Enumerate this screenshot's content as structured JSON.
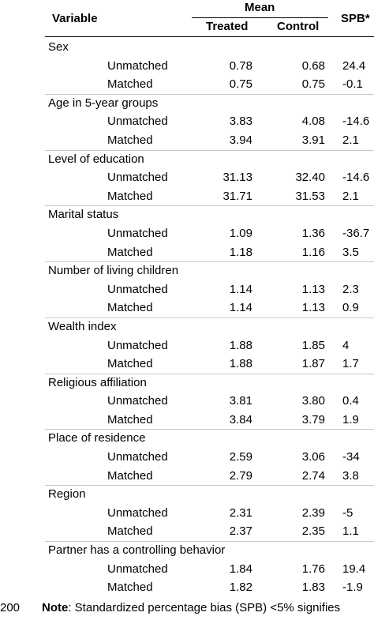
{
  "header": {
    "variable": "Variable",
    "mean": "Mean",
    "treated": "Treated",
    "control": "Control",
    "spb": "SPB*"
  },
  "groups": [
    {
      "label": "Sex",
      "rows": [
        {
          "label": "Unmatched",
          "treated": "0.78",
          "control": "0.68",
          "spb": "24.4"
        },
        {
          "label": "Matched",
          "treated": "0.75",
          "control": "0.75",
          "spb": "-0.1"
        }
      ]
    },
    {
      "label": "Age in 5-year groups",
      "rows": [
        {
          "label": "Unmatched",
          "treated": "3.83",
          "control": "4.08",
          "spb": "-14.6"
        },
        {
          "label": "Matched",
          "treated": "3.94",
          "control": "3.91",
          "spb": "2.1"
        }
      ]
    },
    {
      "label": "Level of education",
      "rows": [
        {
          "label": "Unmatched",
          "treated": "31.13",
          "control": "32.40",
          "spb": "-14.6"
        },
        {
          "label": "Matched",
          "treated": "31.71",
          "control": "31.53",
          "spb": "2.1"
        }
      ]
    },
    {
      "label": "Marital status",
      "rows": [
        {
          "label": "Unmatched",
          "treated": "1.09",
          "control": "1.36",
          "spb": "-36.7"
        },
        {
          "label": "Matched",
          "treated": "1.18",
          "control": "1.16",
          "spb": "3.5"
        }
      ]
    },
    {
      "label": "Number of living children",
      "rows": [
        {
          "label": "Unmatched",
          "treated": "1.14",
          "control": "1.13",
          "spb": "2.3"
        },
        {
          "label": "Matched",
          "treated": "1.14",
          "control": "1.13",
          "spb": "0.9"
        }
      ]
    },
    {
      "label": "Wealth index",
      "rows": [
        {
          "label": "Unmatched",
          "treated": "1.88",
          "control": "1.85",
          "spb": "4"
        },
        {
          "label": "Matched",
          "treated": "1.88",
          "control": "1.87",
          "spb": "1.7"
        }
      ]
    },
    {
      "label": "Religious affiliation",
      "rows": [
        {
          "label": "Unmatched",
          "treated": "3.81",
          "control": "3.80",
          "spb": "0.4"
        },
        {
          "label": "Matched",
          "treated": "3.84",
          "control": "3.79",
          "spb": "1.9"
        }
      ]
    },
    {
      "label": "Place of residence",
      "rows": [
        {
          "label": "Unmatched",
          "treated": "2.59",
          "control": "3.06",
          "spb": "-34"
        },
        {
          "label": "Matched",
          "treated": "2.79",
          "control": "2.74",
          "spb": "3.8"
        }
      ]
    },
    {
      "label": "Region",
      "rows": [
        {
          "label": "Unmatched",
          "treated": "2.31",
          "control": "2.39",
          "spb": "-5"
        },
        {
          "label": "Matched",
          "treated": "2.37",
          "control": "2.35",
          "spb": "1.1"
        }
      ]
    },
    {
      "label": "Partner has a controlling behavior",
      "rows": [
        {
          "label": "Unmatched",
          "treated": "1.84",
          "control": "1.76",
          "spb": "19.4"
        },
        {
          "label": "Matched",
          "treated": "1.82",
          "control": "1.83",
          "spb": "-1.9"
        }
      ]
    }
  ],
  "footer": {
    "page_number": "200",
    "note_label": "Note",
    "note_text": ": Standardized percentage bias (SPB) <5% signifies"
  }
}
